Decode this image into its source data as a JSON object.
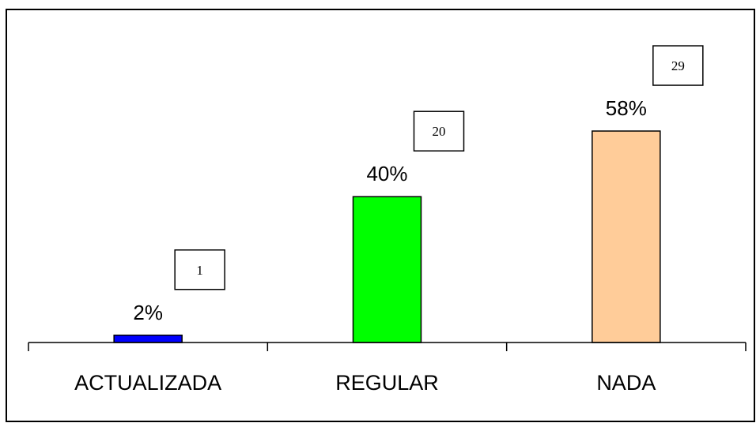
{
  "chart_data": {
    "type": "bar",
    "title": "",
    "xlabel": "",
    "ylabel": "",
    "categories": [
      "ACTUALIZADA",
      "REGULAR",
      "NADA"
    ],
    "values": [
      2,
      40,
      58
    ],
    "value_labels": [
      "2%",
      "40%",
      "58%"
    ],
    "counts": [
      "1",
      "20",
      "29"
    ],
    "colors": [
      "#0000ff",
      "#00ff00",
      "#ffcc99"
    ],
    "grid": false,
    "legend": "none"
  }
}
